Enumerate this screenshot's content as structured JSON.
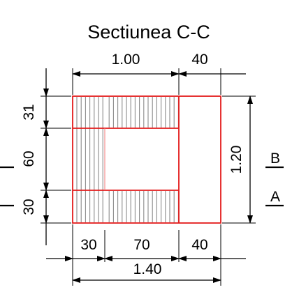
{
  "title": "Sectiunea C-C",
  "top_dims": {
    "left": "1.00",
    "right": "40"
  },
  "bottom_dims": {
    "a": "30",
    "b": "70",
    "c": "40",
    "total": "1.40"
  },
  "left_dims": {
    "top": "31",
    "middle": "60",
    "bottom": "30"
  },
  "right_dim": "1.20",
  "markers": {
    "upper": "B",
    "lower": "A"
  },
  "colors": {
    "section_outline": "#e31c1c",
    "hatch": "#8a8a8a",
    "dimension": "#000000"
  }
}
